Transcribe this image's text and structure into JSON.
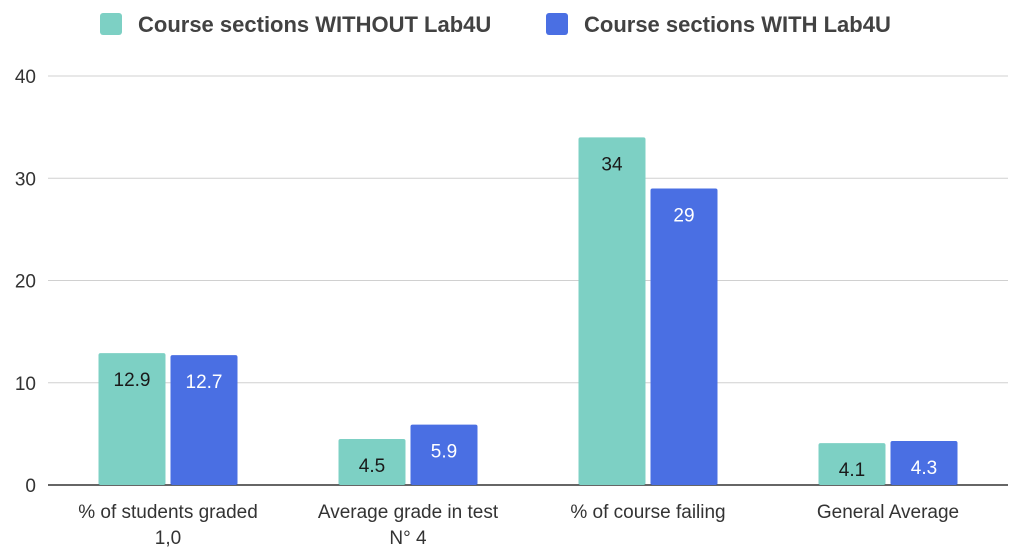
{
  "chart_data": {
    "type": "bar",
    "categories": [
      [
        "% of students graded",
        "1,0"
      ],
      [
        "Average grade in test",
        "N° 4"
      ],
      [
        "% of course failing"
      ],
      [
        "General Average"
      ]
    ],
    "series": [
      {
        "name": "Course sections WITHOUT Lab4U",
        "color": "#7dd0c4",
        "label_color": "#1a1a1a",
        "values": [
          12.9,
          4.5,
          34,
          4.1
        ]
      },
      {
        "name": "Course sections WITH Lab4U",
        "color": "#4a6fe3",
        "label_color": "#ffffff",
        "values": [
          12.7,
          5.9,
          29,
          4.3
        ]
      }
    ],
    "ylim": [
      0,
      40
    ],
    "yticks": [
      0,
      10,
      20,
      30,
      40
    ],
    "grid": true,
    "legend": "top-center"
  }
}
